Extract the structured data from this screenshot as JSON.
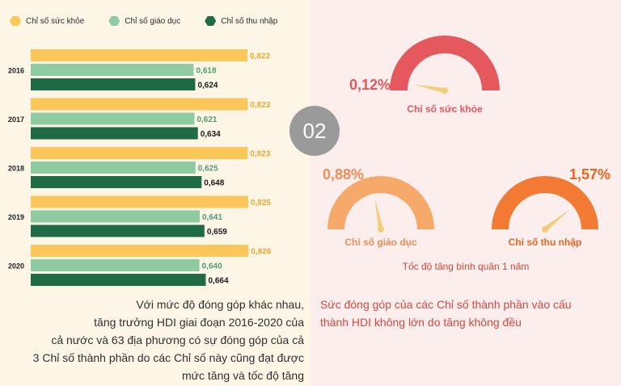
{
  "legend": [
    {
      "label": "Chỉ số sức khỏe",
      "color": "#fcc75a"
    },
    {
      "label": "Chỉ số giáo dục",
      "color": "#8fcba2"
    },
    {
      "label": "Chỉ số thu nhập",
      "color": "#1f6b46"
    }
  ],
  "badge": "02",
  "chart_data": [
    {
      "type": "bar",
      "orientation": "horizontal",
      "categories": [
        "2016",
        "2017",
        "2018",
        "2019",
        "2020"
      ],
      "series": [
        {
          "name": "Chỉ số sức khỏe",
          "color": "#fcc75a",
          "values": [
            0.822,
            0.823,
            0.823,
            0.825,
            0.826
          ],
          "labels": [
            "0,822",
            "0,823",
            "0,823",
            "0,825",
            "0,826"
          ]
        },
        {
          "name": "Chỉ số giáo dục",
          "color": "#8fcba2",
          "values": [
            0.618,
            0.621,
            0.625,
            0.641,
            0.64
          ],
          "labels": [
            "0,618",
            "0,621",
            "0,625",
            "0,641",
            "0,640"
          ]
        },
        {
          "name": "Chỉ số thu nhập",
          "color": "#1f6b46",
          "values": [
            0.624,
            0.634,
            0.648,
            0.659,
            0.664
          ],
          "labels": [
            "0,624",
            "0,634",
            "0,648",
            "0,659",
            "0,664"
          ]
        }
      ]
    },
    {
      "type": "gauge",
      "title": "Tốc độ tăng bình quân 1 năm",
      "items": [
        {
          "name": "Chỉ số sức khỏe",
          "value": 0.12,
          "label": "0,12%",
          "color": "#e4585e",
          "text_color": "#e4585e"
        },
        {
          "name": "Chỉ số giáo dục",
          "value": 0.88,
          "label": "0,88%",
          "color": "#f7a96a",
          "text_color": "#f08d55"
        },
        {
          "name": "Chỉ số thu nhập",
          "value": 1.57,
          "label": "1,57%",
          "color": "#f27a32",
          "text_color": "#e8661f"
        }
      ]
    }
  ],
  "caption_left": [
    "Với mức độ đóng góp khác nhau,",
    "tăng trưởng HDI giai đoạn 2016-2020 của",
    "cả nước và 63 địa phương có sự đóng góp của cả",
    "3 Chỉ số thành phần do các Chỉ số này cũng đạt được",
    "mức tăng và tốc độ tăng"
  ],
  "caption_right": [
    "Sức đóng góp của các Chỉ số thành phần vào cấu",
    "thành HDI không lớn do tăng không đều"
  ]
}
